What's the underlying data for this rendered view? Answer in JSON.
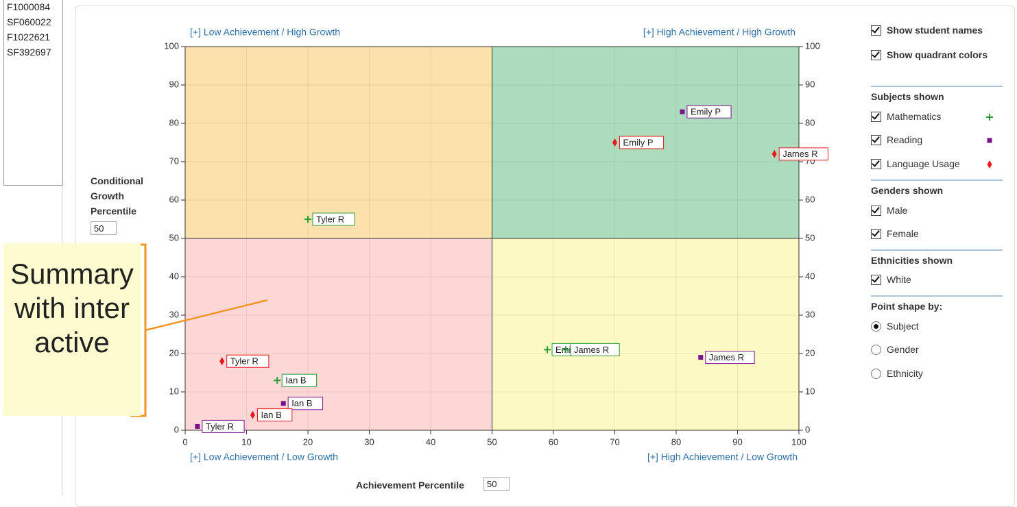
{
  "student_list": [
    "F1000084",
    "SF060022",
    "F1022621",
    "SF392697"
  ],
  "chart_data": {
    "type": "scatter",
    "y_label": "Conditional Growth Percentile",
    "x_label": "Achievement Percentile",
    "y_threshold": 50,
    "x_threshold": 50,
    "xlim": [
      0,
      100
    ],
    "ylim": [
      0,
      100
    ],
    "xticks": [
      0,
      10,
      20,
      30,
      40,
      50,
      60,
      70,
      80,
      90,
      100
    ],
    "yticks": [
      0,
      10,
      20,
      30,
      40,
      50,
      60,
      70,
      80,
      90,
      100
    ],
    "grid": true,
    "quadrants": [
      {
        "label": "[+] Low Achievement / High Growth",
        "color": "#fbe1ab"
      },
      {
        "label": "[+] High Achievement / High Growth",
        "color": "#acdcbb"
      },
      {
        "label": "[+] Low Achievement / Low Growth",
        "color": "#fdd7d6"
      },
      {
        "label": "[+] High Achievement / Low Growth",
        "color": "#fdf9c2"
      }
    ],
    "series": [
      {
        "name": "Mathematics",
        "color": "#2a9a36",
        "marker": "plus",
        "x": [
          20,
          15,
          59,
          62
        ],
        "values": [
          55,
          13,
          21,
          21
        ],
        "labels": [
          "Tyler R",
          "Ian B",
          "Emily P",
          "James R"
        ]
      },
      {
        "name": "Reading",
        "color": "#7a1290",
        "marker": "square",
        "x": [
          81,
          16,
          2,
          84
        ],
        "values": [
          83,
          7,
          1,
          19
        ],
        "labels": [
          "Emily P",
          "Ian B",
          "Tyler R",
          "James R"
        ]
      },
      {
        "name": "Language Usage",
        "color": "#e8161e",
        "marker": "diamond",
        "x": [
          70,
          96,
          6,
          11
        ],
        "values": [
          75,
          72,
          18,
          4
        ],
        "labels": [
          "Emily P",
          "James R",
          "Tyler R",
          "Ian B"
        ]
      }
    ]
  },
  "annotation": "Summary with interactive",
  "options": {
    "show_names": "Show student names",
    "show_colors": "Show quadrant colors",
    "subjects_heading": "Subjects shown",
    "genders_heading": "Genders shown",
    "genders": [
      "Male",
      "Female"
    ],
    "ethnicities_heading": "Ethnicities shown",
    "ethnicities": [
      "White"
    ],
    "shape_heading": "Point shape by:",
    "shapes": [
      "Subject",
      "Gender",
      "Ethnicity"
    ]
  }
}
